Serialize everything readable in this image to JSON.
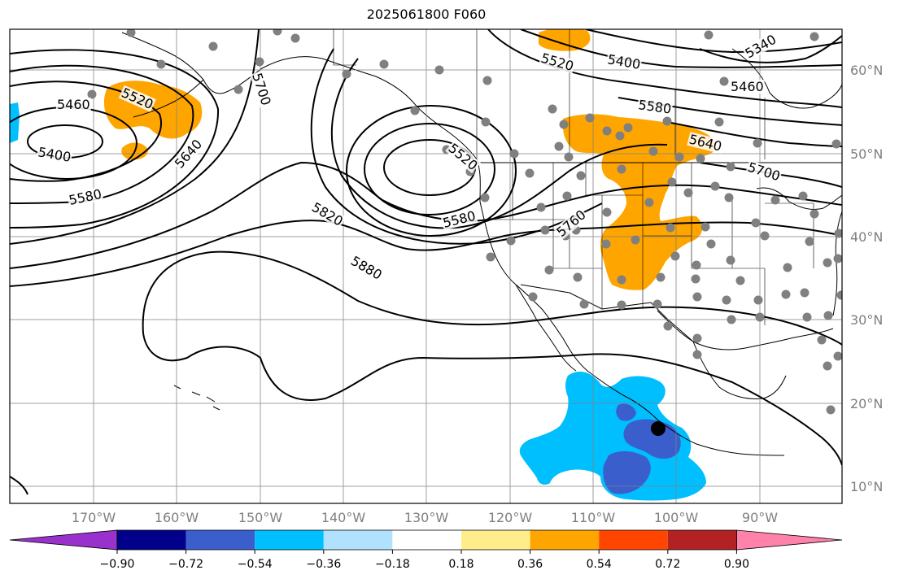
{
  "title": "2025061800 F060",
  "map": {
    "lon_labels": [
      "170°W",
      "160°W",
      "150°W",
      "140°W",
      "130°W",
      "120°W",
      "110°W",
      "100°W",
      "90°W"
    ],
    "lat_labels": [
      "60°N",
      "50°N",
      "40°N",
      "30°N",
      "20°N",
      "10°N"
    ],
    "contour_labels": [
      "5460",
      "5520",
      "5400",
      "5580",
      "5640",
      "5700",
      "5820",
      "5880",
      "5520",
      "5580",
      "5760",
      "5520",
      "5400",
      "5340",
      "5460",
      "5580",
      "5640",
      "5700"
    ]
  },
  "colorbar": {
    "ticks": [
      "−0.90",
      "−0.72",
      "−0.54",
      "−0.36",
      "−0.18",
      "0.18",
      "0.36",
      "0.54",
      "0.72",
      "0.90"
    ],
    "colors": [
      "#9932cc",
      "#00008b",
      "#3a5fcd",
      "#00bfff",
      "#b0e2ff",
      "#ffffff",
      "#ffec8b",
      "#ffa500",
      "#ff4500",
      "#b22222",
      "#ff82ab"
    ]
  },
  "colors": {
    "land_positive": "#ffa500",
    "ocean_negative": "#00bfff",
    "strong_negative": "#3a5fcd",
    "contour": "#000000",
    "station": "#808080",
    "marker": "#000000"
  }
}
